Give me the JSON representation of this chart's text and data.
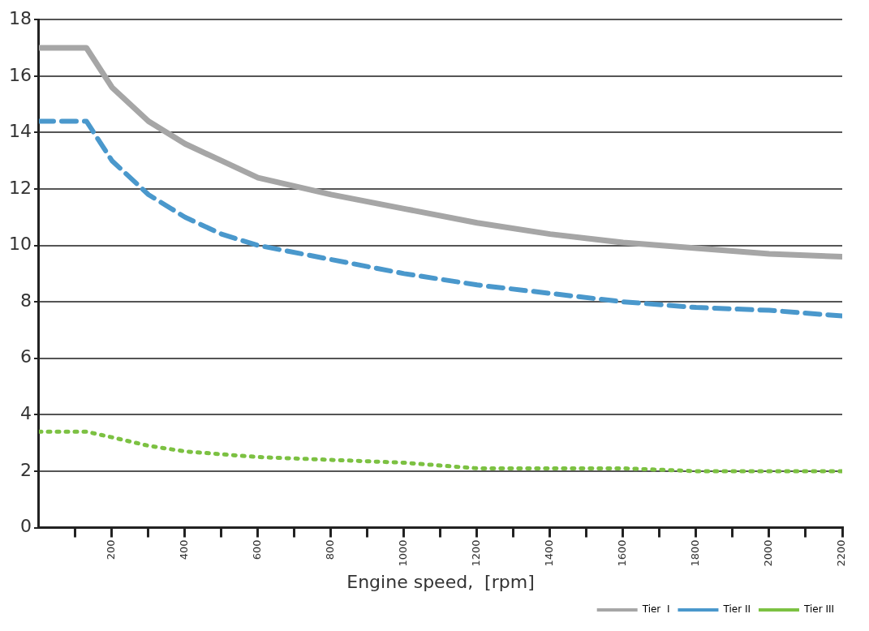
{
  "chart_data": {
    "type": "line",
    "xlabel": "Engine speed,  [rpm]",
    "xlim": [
      0,
      2200
    ],
    "xticks": [
      {
        "value": 100,
        "label": null
      },
      200,
      {
        "value": 300,
        "label": null
      },
      400,
      {
        "value": 500,
        "label": null
      },
      600,
      {
        "value": 700,
        "label": null
      },
      800,
      {
        "value": 900,
        "label": null
      },
      1000,
      {
        "value": 1100,
        "label": null
      },
      1200,
      {
        "value": 1300,
        "label": null
      },
      1400,
      {
        "value": 1500,
        "label": null
      },
      1600,
      {
        "value": 1700,
        "label": null
      },
      1800,
      {
        "value": 1900,
        "label": null
      },
      2000,
      {
        "value": 2100,
        "label": null
      },
      2200
    ],
    "ylim": [
      0,
      18
    ],
    "yticks": [
      0,
      2,
      4,
      6,
      8,
      10,
      12,
      14,
      16,
      18
    ],
    "grid": "y",
    "legend": "bottom right",
    "marker": "none",
    "series": [
      {
        "name": "Tier  I",
        "color": "#a6a6a6",
        "line_style": "solid",
        "x": [
          0,
          130,
          200,
          300,
          400,
          500,
          600,
          800,
          1000,
          1200,
          1400,
          1600,
          1800,
          2000,
          2200
        ],
        "values": [
          17,
          17,
          15.6,
          14.4,
          13.6,
          13.0,
          12.4,
          11.8,
          11.3,
          10.8,
          10.4,
          10.1,
          9.9,
          9.7,
          9.6
        ]
      },
      {
        "name": "Tier II",
        "color": "#4a98cc",
        "line_style": "dashed",
        "x": [
          0,
          130,
          200,
          300,
          400,
          500,
          600,
          800,
          1000,
          1200,
          1400,
          1600,
          1800,
          2000,
          2200
        ],
        "values": [
          14.4,
          14.4,
          13.0,
          11.8,
          11.0,
          10.4,
          10.0,
          9.5,
          9.0,
          8.6,
          8.3,
          8.0,
          7.8,
          7.7,
          7.5
        ]
      },
      {
        "name": "Tier III",
        "color": "#7cc142",
        "line_style": "dotted",
        "x": [
          0,
          130,
          200,
          300,
          400,
          600,
          800,
          1000,
          1200,
          1400,
          1600,
          1800,
          2000,
          2200
        ],
        "values": [
          3.4,
          3.4,
          3.2,
          2.9,
          2.7,
          2.5,
          2.4,
          2.3,
          2.1,
          2.1,
          2.1,
          2.0,
          2.0,
          2.0
        ]
      }
    ]
  }
}
